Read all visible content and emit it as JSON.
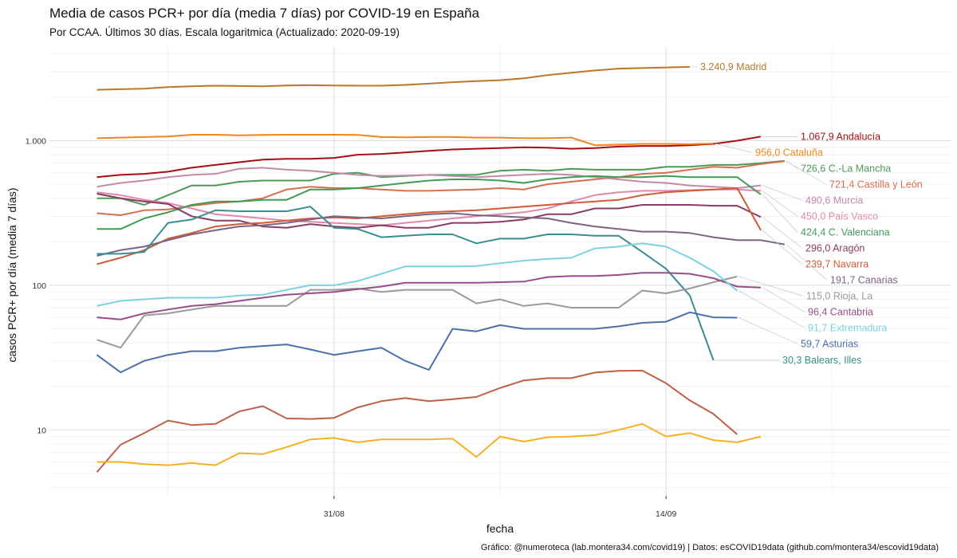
{
  "chart_data": {
    "type": "line",
    "title": "Media de casos PCR+ por día (media 7 días) por COVID-19 en España",
    "subtitle": "Por CCAA. Últimos 30 días. Escala logaritmica  (Actualizado: 2020-09-19)",
    "xlabel": "fecha",
    "ylabel": "casos PCR+ por día (media 7 días)",
    "caption": "Gráfico: @numeroteca (lab.montera34.com/covid19) | Datos: esCOVID19data (github.com/montera34/escovid19data)",
    "y_scale": "log",
    "ylim": [
      3.5,
      4500
    ],
    "xlim": [
      "2020-08-19",
      "2020-09-26"
    ],
    "x": [
      "2020-08-21",
      "2020-08-22",
      "2020-08-23",
      "2020-08-24",
      "2020-08-25",
      "2020-08-26",
      "2020-08-27",
      "2020-08-28",
      "2020-08-29",
      "2020-08-30",
      "2020-08-31",
      "2020-09-01",
      "2020-09-02",
      "2020-09-03",
      "2020-09-04",
      "2020-09-05",
      "2020-09-06",
      "2020-09-07",
      "2020-09-08",
      "2020-09-09",
      "2020-09-10",
      "2020-09-11",
      "2020-09-12",
      "2020-09-13",
      "2020-09-14",
      "2020-09-15",
      "2020-09-16",
      "2020-09-17",
      "2020-09-18",
      "2020-09-19"
    ],
    "x_ticks": [
      {
        "value": "2020-08-31",
        "label": "31/08"
      },
      {
        "value": "2020-09-14",
        "label": "14/09"
      }
    ],
    "y_ticks": [
      {
        "value": 10,
        "label": "10"
      },
      {
        "value": 100,
        "label": "100"
      },
      {
        "value": 1000,
        "label": "1.000"
      }
    ],
    "grid": true,
    "legend": "direct labels at line ends",
    "series": [
      {
        "name": "Madrid",
        "label": "3.240,9 Madrid",
        "color": "#b8792a",
        "values": [
          2250,
          2270,
          2290,
          2350,
          2380,
          2400,
          2390,
          2380,
          2410,
          2420,
          2410,
          2400,
          2400,
          2430,
          2480,
          2540,
          2580,
          2620,
          2700,
          2840,
          2950,
          3060,
          3150,
          3180,
          3210,
          3240.9,
          null,
          null,
          null,
          null
        ]
      },
      {
        "name": "Andalucía",
        "label": "1.067,9 Andalucía",
        "color": "#a50f15",
        "values": [
          560,
          580,
          590,
          610,
          650,
          680,
          710,
          740,
          750,
          750,
          760,
          800,
          810,
          830,
          850,
          870,
          880,
          890,
          900,
          895,
          880,
          890,
          910,
          920,
          920,
          930,
          950,
          1000,
          1067.9,
          null
        ]
      },
      {
        "name": "Cataluña",
        "label": "956,0 Cataluña",
        "color": "#f08518",
        "values": [
          1040,
          1050,
          1060,
          1070,
          1100,
          1100,
          1090,
          1095,
          1100,
          1100,
          1100,
          1095,
          1060,
          1055,
          1060,
          1060,
          1050,
          1050,
          1040,
          1040,
          1050,
          930,
          940,
          950,
          950,
          945,
          956.0,
          null,
          null,
          null
        ]
      },
      {
        "name": "C.-La Mancha",
        "label": "726,6 C.-La Mancha",
        "color": "#4c9a58",
        "values": [
          400,
          400,
          360,
          420,
          490,
          490,
          520,
          530,
          530,
          530,
          590,
          600,
          560,
          570,
          580,
          580,
          580,
          620,
          630,
          620,
          640,
          630,
          630,
          630,
          660,
          660,
          680,
          680,
          700,
          726.6
        ]
      },
      {
        "name": "Castilla y León",
        "label": "721,4 Castilla y León",
        "color": "#d66f4c",
        "values": [
          315,
          305,
          330,
          335,
          355,
          370,
          380,
          400,
          460,
          480,
          470,
          470,
          460,
          450,
          450,
          455,
          460,
          470,
          460,
          500,
          520,
          540,
          560,
          590,
          600,
          630,
          660,
          650,
          690,
          721.4
        ]
      },
      {
        "name": "Murcia",
        "label": "490,6 Murcia",
        "color": "#c38aa8",
        "values": [
          480,
          510,
          530,
          560,
          580,
          590,
          640,
          650,
          630,
          620,
          600,
          580,
          570,
          575,
          580,
          570,
          560,
          570,
          580,
          590,
          580,
          560,
          540,
          520,
          510,
          490,
          480,
          470,
          490.6,
          null
        ]
      },
      {
        "name": "País Vasco",
        "label": "450,0 País Vasco",
        "color": "#e088ad",
        "values": [
          440,
          420,
          390,
          370,
          340,
          310,
          300,
          290,
          280,
          275,
          270,
          265,
          260,
          270,
          280,
          290,
          300,
          310,
          320,
          340,
          380,
          420,
          440,
          450,
          450,
          455,
          460,
          460,
          450.0,
          null
        ]
      },
      {
        "name": "C. Valenciana",
        "label": "424,4 C. Valenciana",
        "color": "#3f9b57",
        "values": [
          245,
          245,
          290,
          320,
          360,
          380,
          380,
          390,
          390,
          460,
          460,
          470,
          490,
          510,
          530,
          540,
          540,
          530,
          510,
          540,
          560,
          570,
          560,
          560,
          570,
          560,
          560,
          560,
          424.4,
          null
        ]
      },
      {
        "name": "Aragón",
        "label": "296,0 Aragón",
        "color": "#8a3b63",
        "values": [
          430,
          400,
          380,
          365,
          300,
          280,
          280,
          255,
          250,
          265,
          255,
          250,
          260,
          250,
          250,
          270,
          270,
          275,
          285,
          310,
          310,
          340,
          340,
          360,
          360,
          360,
          355,
          355,
          296.0,
          null
        ]
      },
      {
        "name": "Navarra",
        "label": "239,7 Navarra",
        "color": "#d05b36",
        "values": [
          140,
          155,
          175,
          210,
          230,
          255,
          265,
          270,
          280,
          290,
          295,
          290,
          300,
          310,
          320,
          325,
          330,
          340,
          350,
          360,
          370,
          380,
          390,
          420,
          440,
          450,
          460,
          470,
          239.7,
          null
        ]
      },
      {
        "name": "Canarias",
        "label": "191,7 Canarias",
        "color": "#7b6483",
        "values": [
          160,
          175,
          185,
          205,
          225,
          240,
          255,
          260,
          270,
          285,
          300,
          295,
          290,
          300,
          310,
          315,
          305,
          300,
          295,
          290,
          270,
          255,
          245,
          235,
          235,
          230,
          215,
          205,
          205,
          191.7
        ]
      },
      {
        "name": "Balears, Illes",
        "label": "30,3 Balears, Illes",
        "color": "#3a8d92",
        "values": [
          165,
          165,
          170,
          270,
          285,
          330,
          325,
          325,
          325,
          350,
          250,
          245,
          215,
          220,
          225,
          225,
          195,
          210,
          210,
          225,
          225,
          220,
          220,
          170,
          130,
          85,
          30.3,
          null,
          null,
          null
        ]
      },
      {
        "name": "Rioja, La",
        "label": "115,0 Rioja, La",
        "color": "#9a9a9a",
        "values": [
          42,
          37,
          62,
          64,
          68,
          72,
          72,
          72,
          72,
          93,
          93,
          95,
          90,
          93,
          93,
          93,
          75,
          80,
          72,
          75,
          70,
          70,
          70,
          92,
          88,
          95,
          105,
          115.0,
          null,
          null
        ]
      },
      {
        "name": "Cantabria",
        "label": "96,4 Cantabria",
        "color": "#964e8a",
        "values": [
          60,
          58,
          64,
          68,
          72,
          74,
          78,
          82,
          86,
          88,
          90,
          94,
          98,
          104,
          104,
          104,
          104,
          105,
          106,
          114,
          116,
          116,
          118,
          122,
          122,
          120,
          112,
          98,
          96.4,
          null
        ]
      },
      {
        "name": "Extremadura",
        "label": "91,7 Extremadura",
        "color": "#7ed0e3",
        "values": [
          72,
          78,
          80,
          82,
          82,
          82,
          85,
          86,
          93,
          100,
          100,
          107,
          120,
          135,
          135,
          135,
          136,
          142,
          148,
          152,
          155,
          180,
          185,
          195,
          185,
          155,
          125,
          91.7,
          null,
          null
        ]
      },
      {
        "name": "Asturias",
        "label": "59,7 Asturias",
        "color": "#4a70a9",
        "values": [
          33,
          25,
          30,
          33,
          35,
          35,
          37,
          38,
          39,
          36,
          33,
          35,
          37,
          30,
          26,
          50,
          48,
          53,
          50,
          50,
          50,
          50,
          52,
          55,
          56,
          65,
          60,
          59.7,
          null,
          null
        ]
      },
      {
        "name": "",
        "label": "",
        "color": "#bf6048",
        "values": [
          5.1,
          7.9,
          9.5,
          11.6,
          10.8,
          11,
          13.4,
          14.6,
          12,
          11.9,
          12.1,
          14.3,
          15.8,
          16.6,
          15.8,
          16.3,
          16.9,
          19.5,
          22,
          22.8,
          22.8,
          24.9,
          25.6,
          25.7,
          21,
          16,
          12.9,
          9.3,
          null,
          null
        ]
      },
      {
        "name": "",
        "label": "",
        "color": "#f6b022",
        "values": [
          6.0,
          6.0,
          5.8,
          5.7,
          5.9,
          5.7,
          6.9,
          6.8,
          7.6,
          8.6,
          8.8,
          8.2,
          8.6,
          8.6,
          8.6,
          8.7,
          6.5,
          9.0,
          8.3,
          8.9,
          9.0,
          9.2,
          10,
          11,
          9.0,
          9.5,
          8.5,
          8.2,
          9.0,
          null
        ]
      }
    ]
  }
}
